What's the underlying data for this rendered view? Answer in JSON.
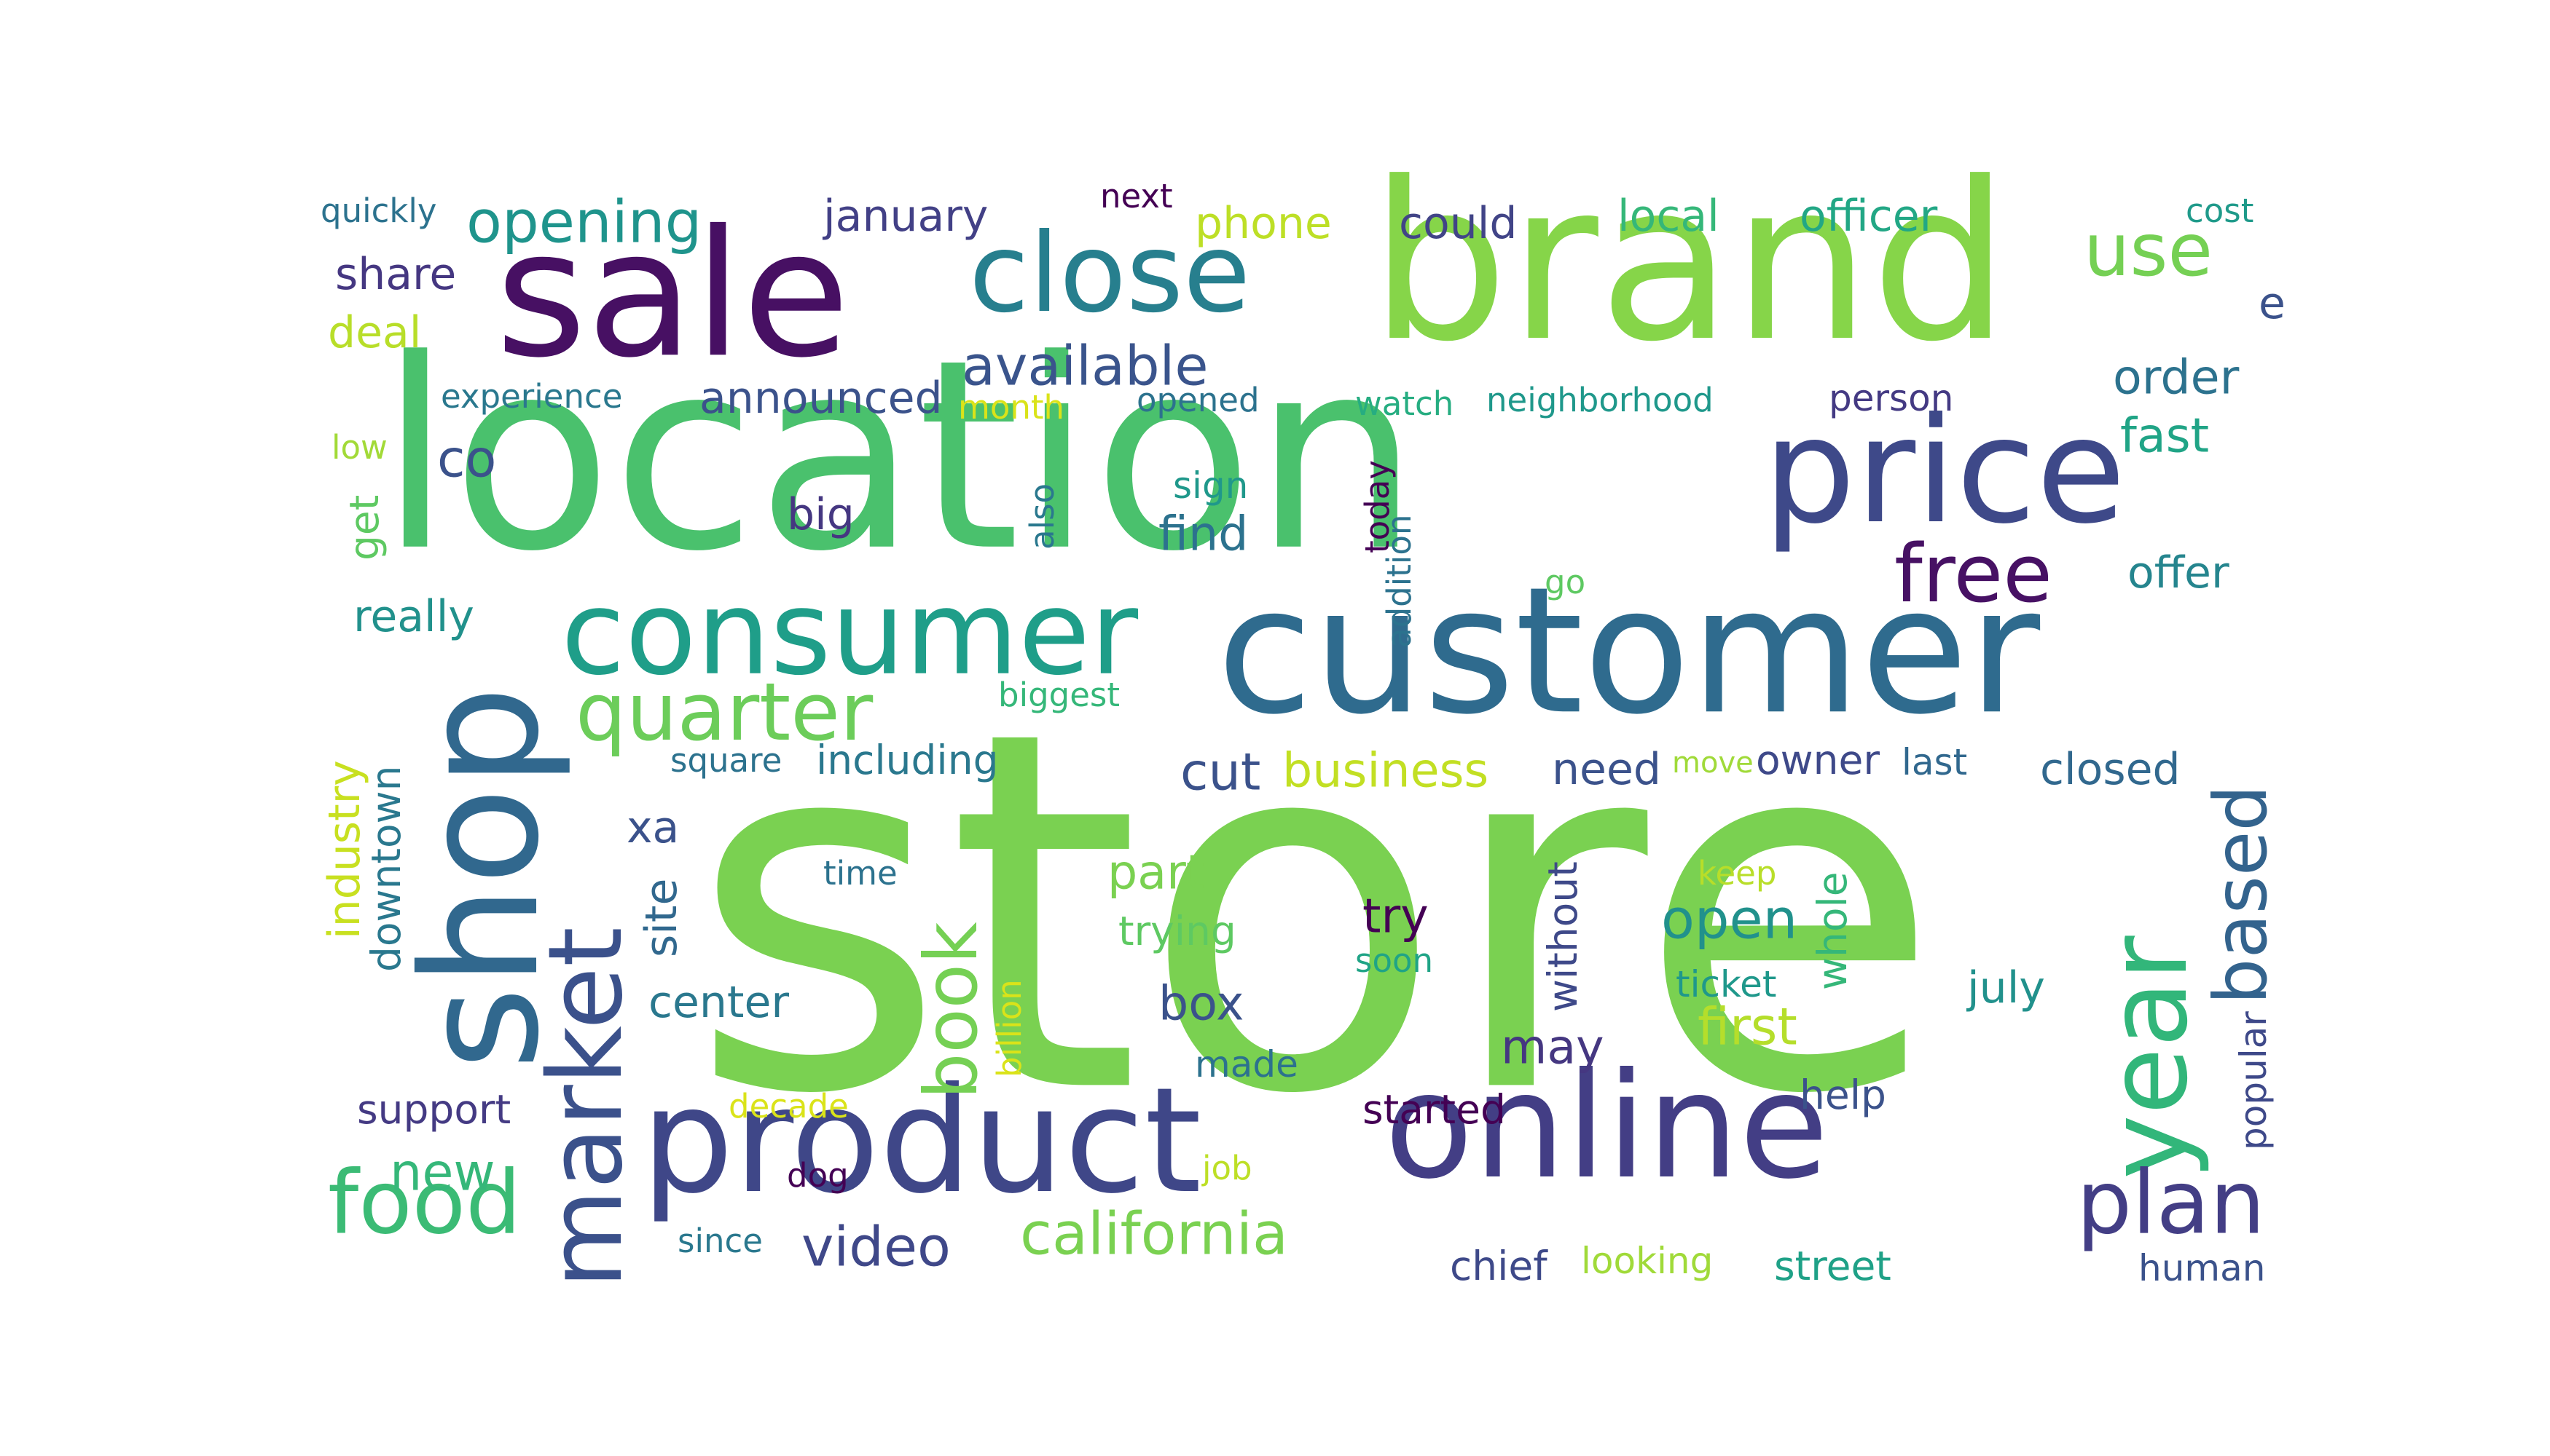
{
  "words": [
    {
      "text": "store",
      "color": "#7ad151",
      "vertical": false
    },
    {
      "text": "location",
      "color": "#4ac16d",
      "vertical": false
    },
    {
      "text": "brand",
      "color": "#86d549",
      "vertical": false
    },
    {
      "text": "customer",
      "color": "#2f6b8e",
      "vertical": false
    },
    {
      "text": "sale",
      "color": "#471063",
      "vertical": false
    },
    {
      "text": "price",
      "color": "#3e4989",
      "vertical": false
    },
    {
      "text": "online",
      "color": "#433e85",
      "vertical": false
    },
    {
      "text": "product",
      "color": "#3f4788",
      "vertical": false
    },
    {
      "text": "consumer",
      "color": "#1f9e89",
      "vertical": false
    },
    {
      "text": "close",
      "color": "#277f8e",
      "vertical": false
    },
    {
      "text": "shop",
      "color": "#31688e",
      "vertical": true
    },
    {
      "text": "market",
      "color": "#3b518b",
      "vertical": true
    },
    {
      "text": "year",
      "color": "#32b67a",
      "vertical": true
    },
    {
      "text": "quarter",
      "color": "#6ccd5a",
      "vertical": false
    },
    {
      "text": "food",
      "color": "#3bbb75",
      "vertical": false
    },
    {
      "text": "plan",
      "color": "#433e85",
      "vertical": false
    },
    {
      "text": "free",
      "color": "#471164",
      "vertical": false
    },
    {
      "text": "based",
      "color": "#33638d",
      "vertical": true
    },
    {
      "text": "book",
      "color": "#75d054",
      "vertical": true
    },
    {
      "text": "use",
      "color": "#75d054",
      "vertical": false
    },
    {
      "text": "opening",
      "color": "#1f948c",
      "vertical": false
    },
    {
      "text": "available",
      "color": "#3a548c",
      "vertical": false
    },
    {
      "text": "california",
      "color": "#7ad151",
      "vertical": false
    },
    {
      "text": "video",
      "color": "#3f4889",
      "vertical": false
    },
    {
      "text": "cut",
      "color": "#3b528b",
      "vertical": false
    },
    {
      "text": "business",
      "color": "#c2df23",
      "vertical": false
    },
    {
      "text": "open",
      "color": "#21918c",
      "vertical": false
    },
    {
      "text": "first",
      "color": "#b5de2b",
      "vertical": false
    },
    {
      "text": "order",
      "color": "#2c728e",
      "vertical": false
    },
    {
      "text": "fast",
      "color": "#20a486",
      "vertical": false
    },
    {
      "text": "offer",
      "color": "#25858e",
      "vertical": false
    },
    {
      "text": "january",
      "color": "#424086",
      "vertical": false
    },
    {
      "text": "phone",
      "color": "#bddf26",
      "vertical": false
    },
    {
      "text": "could",
      "color": "#414487",
      "vertical": false
    },
    {
      "text": "local",
      "color": "#35b779",
      "vertical": false
    },
    {
      "text": "officer",
      "color": "#22a785",
      "vertical": false
    },
    {
      "text": "cost",
      "color": "#1f9a8a",
      "vertical": false
    },
    {
      "text": "e",
      "color": "#3b528b",
      "vertical": false
    },
    {
      "text": "quickly",
      "color": "#2c728e",
      "vertical": false
    },
    {
      "text": "share",
      "color": "#453781",
      "vertical": false
    },
    {
      "text": "deal",
      "color": "#b8de29",
      "vertical": false
    },
    {
      "text": "experience",
      "color": "#2a788e",
      "vertical": false
    },
    {
      "text": "announced",
      "color": "#3b528b",
      "vertical": false
    },
    {
      "text": "month",
      "color": "#dae319",
      "vertical": false
    },
    {
      "text": "opened",
      "color": "#2c728e",
      "vertical": false
    },
    {
      "text": "watch",
      "color": "#26ad81",
      "vertical": false
    },
    {
      "text": "neighborhood",
      "color": "#1f988b",
      "vertical": false
    },
    {
      "text": "person",
      "color": "#443a83",
      "vertical": false
    },
    {
      "text": "co",
      "color": "#3b528b",
      "vertical": false
    },
    {
      "text": "low",
      "color": "#a2da37",
      "vertical": false
    },
    {
      "text": "get",
      "color": "#5ec962",
      "vertical": true
    },
    {
      "text": "big",
      "color": "#453781",
      "vertical": false
    },
    {
      "text": "also",
      "color": "#2a788e",
      "vertical": true
    },
    {
      "text": "sign",
      "color": "#1f988b",
      "vertical": false
    },
    {
      "text": "find",
      "color": "#2c728e",
      "vertical": false
    },
    {
      "text": "today",
      "color": "#440154",
      "vertical": true
    },
    {
      "text": "addition",
      "color": "#2c728e",
      "vertical": true
    },
    {
      "text": "go",
      "color": "#5ec962",
      "vertical": false
    },
    {
      "text": "really",
      "color": "#21918c",
      "vertical": false
    },
    {
      "text": "industry",
      "color": "#c8e020",
      "vertical": true
    },
    {
      "text": "downtown",
      "color": "#2a788e",
      "vertical": true
    },
    {
      "text": "xa",
      "color": "#3b528b",
      "vertical": false
    },
    {
      "text": "site",
      "color": "#31688e",
      "vertical": true
    },
    {
      "text": "biggest",
      "color": "#35b779",
      "vertical": false
    },
    {
      "text": "square",
      "color": "#2c728e",
      "vertical": false
    },
    {
      "text": "including",
      "color": "#2a788e",
      "vertical": false
    },
    {
      "text": "need",
      "color": "#3b528b",
      "vertical": false
    },
    {
      "text": "move",
      "color": "#a0da39",
      "vertical": false
    },
    {
      "text": "owner",
      "color": "#3e4989",
      "vertical": false
    },
    {
      "text": "last",
      "color": "#31688e",
      "vertical": false
    },
    {
      "text": "closed",
      "color": "#31688e",
      "vertical": false
    },
    {
      "text": "time",
      "color": "#2c728e",
      "vertical": false
    },
    {
      "text": "part",
      "color": "#7ad151",
      "vertical": false
    },
    {
      "text": "trying",
      "color": "#5ec962",
      "vertical": false
    },
    {
      "text": "try",
      "color": "#440154",
      "vertical": false
    },
    {
      "text": "soon",
      "color": "#20a486",
      "vertical": false
    },
    {
      "text": "without",
      "color": "#3e4989",
      "vertical": true
    },
    {
      "text": "keep",
      "color": "#b8de29",
      "vertical": false
    },
    {
      "text": "whole",
      "color": "#35b779",
      "vertical": true
    },
    {
      "text": "billion",
      "color": "#dae319",
      "vertical": true
    },
    {
      "text": "center",
      "color": "#2a788e",
      "vertical": false
    },
    {
      "text": "box",
      "color": "#3b528b",
      "vertical": false
    },
    {
      "text": "ticket",
      "color": "#1f988b",
      "vertical": false
    },
    {
      "text": "july",
      "color": "#21918c",
      "vertical": false
    },
    {
      "text": "popular",
      "color": "#3e4989",
      "vertical": true
    },
    {
      "text": "may",
      "color": "#453781",
      "vertical": false
    },
    {
      "text": "made",
      "color": "#2c728e",
      "vertical": false
    },
    {
      "text": "help",
      "color": "#3b528b",
      "vertical": false
    },
    {
      "text": "support",
      "color": "#443a83",
      "vertical": false
    },
    {
      "text": "decade",
      "color": "#dae319",
      "vertical": false
    },
    {
      "text": "started",
      "color": "#440154",
      "vertical": false
    },
    {
      "text": "new",
      "color": "#35b779",
      "vertical": false
    },
    {
      "text": "dog",
      "color": "#440154",
      "vertical": false
    },
    {
      "text": "job",
      "color": "#bddf26",
      "vertical": false
    },
    {
      "text": "since",
      "color": "#2a788e",
      "vertical": false
    },
    {
      "text": "chief",
      "color": "#3e4989",
      "vertical": false
    },
    {
      "text": "looking",
      "color": "#a0da39",
      "vertical": false
    },
    {
      "text": "street",
      "color": "#1fa187",
      "vertical": false
    },
    {
      "text": "human",
      "color": "#3b528b",
      "vertical": false
    },
    {
      "text": "next",
      "color": "#440154",
      "vertical": false
    }
  ]
}
